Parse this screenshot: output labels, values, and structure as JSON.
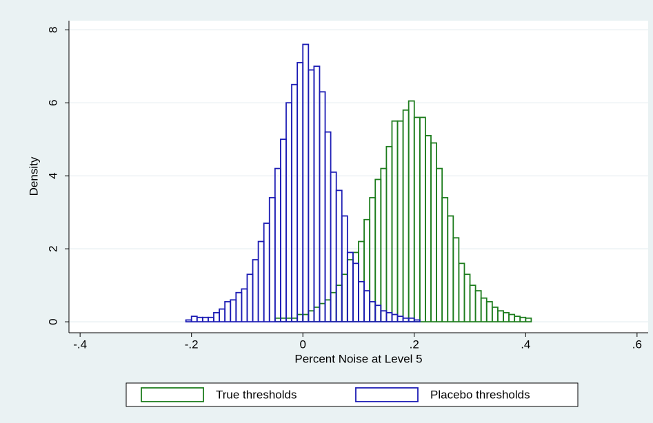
{
  "chart_data": {
    "type": "histogram",
    "xlabel": "Percent Noise at Level 5",
    "ylabel": "Density",
    "xlim": [
      -0.42,
      0.62
    ],
    "ylim": [
      -0.3,
      8.25
    ],
    "xticks": [
      {
        "value": -0.4,
        "label": "-.4"
      },
      {
        "value": -0.2,
        "label": "-.2"
      },
      0,
      {
        "value": 0.2,
        "label": ".2"
      },
      {
        "value": 0.4,
        "label": ".4"
      },
      {
        "value": 0.6,
        "label": ".6"
      }
    ],
    "yticks": [
      0,
      2,
      4,
      6,
      8
    ],
    "grid": true,
    "legend": "bottom",
    "series": [
      {
        "name": "True thresholds",
        "color": "#1e7d1e",
        "bins": [
          -0.05,
          -0.04,
          -0.03,
          -0.02,
          -0.01,
          0,
          0.01,
          0.02,
          0.03,
          0.04,
          0.05,
          0.06,
          0.07,
          0.08,
          0.09,
          0.1,
          0.11,
          0.12,
          0.13,
          0.14,
          0.15,
          0.16,
          0.17,
          0.18,
          0.19,
          0.2,
          0.21,
          0.22,
          0.23,
          0.24,
          0.25,
          0.26,
          0.27,
          0.28,
          0.29,
          0.3,
          0.31,
          0.32,
          0.33,
          0.34,
          0.35,
          0.36,
          0.37,
          0.38,
          0.39,
          0.4,
          0.41
        ],
        "values": [
          0.1,
          0.1,
          0.1,
          0.1,
          0.2,
          0.2,
          0.3,
          0.4,
          0.5,
          0.6,
          0.8,
          1.0,
          1.3,
          1.7,
          1.9,
          2.2,
          2.8,
          3.4,
          3.9,
          4.2,
          4.8,
          5.5,
          5.5,
          5.8,
          6.05,
          5.6,
          5.6,
          5.1,
          4.9,
          4.2,
          3.4,
          2.9,
          2.3,
          1.6,
          1.3,
          1.0,
          0.85,
          0.65,
          0.55,
          0.4,
          0.3,
          0.25,
          0.2,
          0.15,
          0.12,
          0.1
        ]
      },
      {
        "name": "Placebo thresholds",
        "color": "#1c1cb4",
        "bins": [
          -0.21,
          -0.2,
          -0.19,
          -0.18,
          -0.17,
          -0.16,
          -0.15,
          -0.14,
          -0.13,
          -0.12,
          -0.11,
          -0.1,
          -0.09,
          -0.08,
          -0.07,
          -0.06,
          -0.05,
          -0.04,
          -0.03,
          -0.02,
          -0.01,
          0,
          0.01,
          0.02,
          0.03,
          0.04,
          0.05,
          0.06,
          0.07,
          0.08,
          0.09,
          0.1,
          0.11,
          0.12,
          0.13,
          0.14,
          0.15,
          0.16,
          0.17,
          0.18,
          0.19,
          0.2,
          0.21
        ],
        "values": [
          0.05,
          0.15,
          0.12,
          0.12,
          0.12,
          0.25,
          0.35,
          0.55,
          0.6,
          0.8,
          0.9,
          1.3,
          1.7,
          2.2,
          2.7,
          3.4,
          4.2,
          5.0,
          6.0,
          6.5,
          7.1,
          7.6,
          6.9,
          7.0,
          6.3,
          5.2,
          4.1,
          3.6,
          2.9,
          1.9,
          1.6,
          1.1,
          0.85,
          0.55,
          0.45,
          0.3,
          0.25,
          0.2,
          0.15,
          0.1,
          0.1,
          0.05
        ]
      }
    ]
  }
}
